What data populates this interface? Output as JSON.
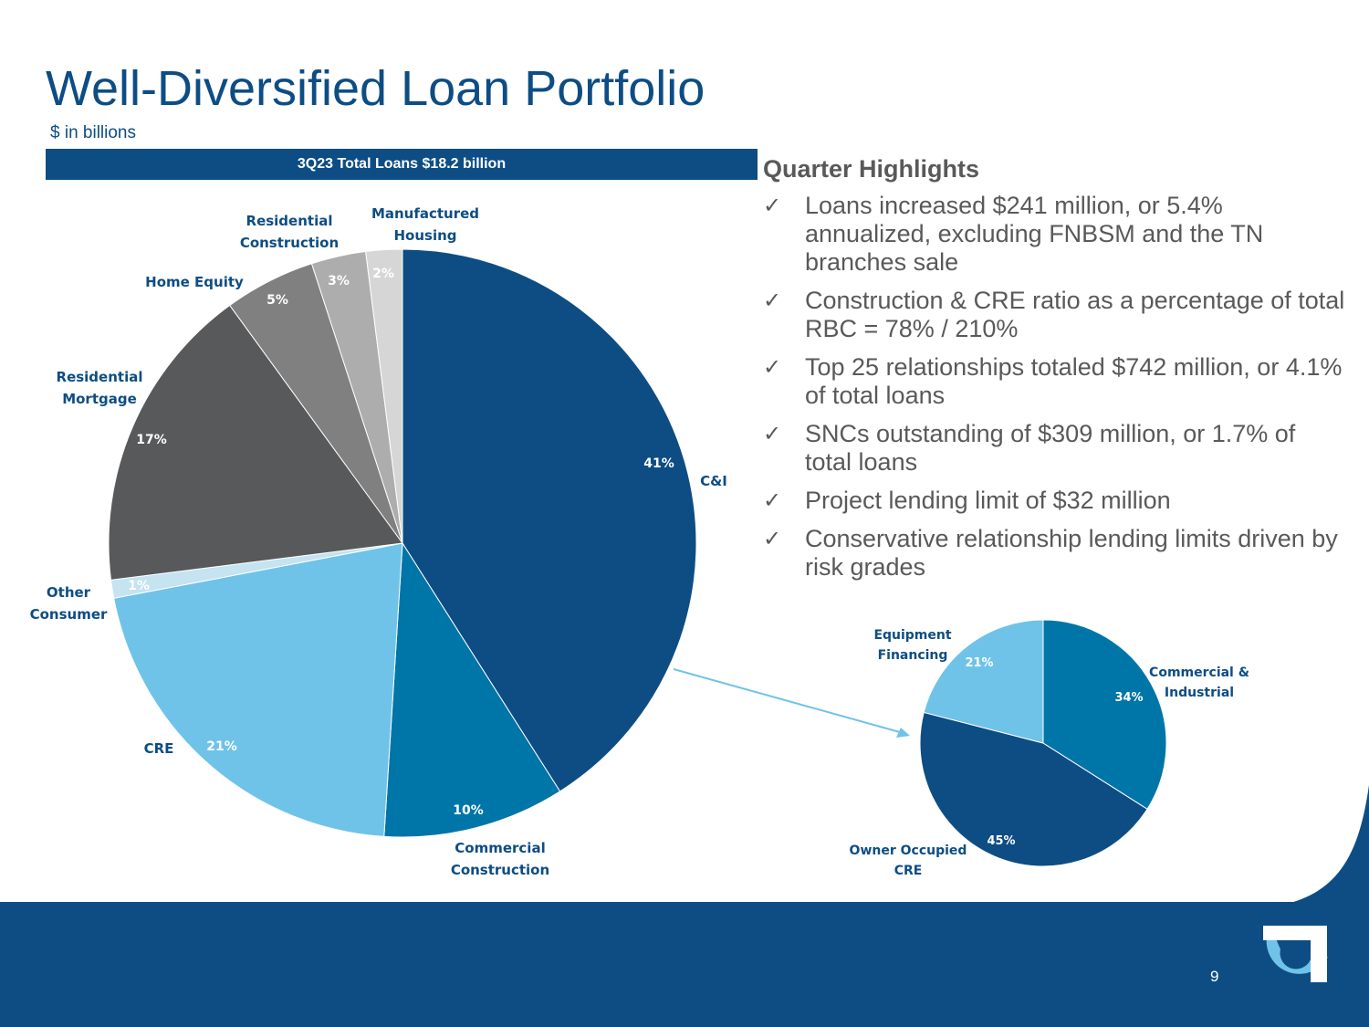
{
  "slide": {
    "title": "Well-Diversified Loan Portfolio",
    "subtitle": "$ in billions",
    "banner": "3Q23 Total Loans $18.2 billion",
    "page_number": "9",
    "colors": {
      "brand_navy": "#0d4d84",
      "brand_light_blue": "#6fc3e8",
      "text_gray": "#595959"
    }
  },
  "highlights": {
    "title": "Quarter Highlights",
    "check_icon": "✓",
    "items": [
      "Loans increased $241 million, or 5.4% annualized, excluding FNBSM and the TN branches sale",
      "Construction & CRE ratio as a percentage of total RBC = 78% / 210%",
      "Top 25 relationships totaled $742 million, or 4.1% of total loans",
      "SNCs outstanding of $309 million, or 1.7% of total loans",
      "Project lending limit of $32 million",
      "Conservative relationship lending limits driven by risk grades"
    ]
  },
  "chart_data": [
    {
      "type": "pie",
      "title": "3Q23 Total Loans $18.2 billion",
      "slices": [
        {
          "label": "C&I",
          "value": 41,
          "display": "41%",
          "color": "#0d4d84"
        },
        {
          "label": "Commercial Construction",
          "value": 10,
          "display": "10%",
          "color": "#0075a8"
        },
        {
          "label": "CRE",
          "value": 21,
          "display": "21%",
          "color": "#6fc3e8"
        },
        {
          "label": "Other Consumer",
          "value": 1,
          "display": "1%",
          "color": "#c5e3f1"
        },
        {
          "label": "Residential Mortgage",
          "value": 17,
          "display": "17%",
          "color": "#58595b"
        },
        {
          "label": "Home Equity",
          "value": 5,
          "display": "5%",
          "color": "#808080"
        },
        {
          "label": "Residential Construction",
          "value": 3,
          "display": "3%",
          "color": "#adadad"
        },
        {
          "label": "Manufactured Housing",
          "value": 2,
          "display": "2%",
          "color": "#d6d6d6"
        }
      ]
    },
    {
      "type": "pie",
      "title": "",
      "slices": [
        {
          "label": "Commercial & Industrial",
          "value": 34,
          "display": "34%",
          "color": "#0075a8"
        },
        {
          "label": "Owner Occupied CRE",
          "value": 45,
          "display": "45%",
          "color": "#0d4d84"
        },
        {
          "label": "Equipment Financing",
          "value": 21,
          "display": "21%",
          "color": "#6fc3e8"
        }
      ]
    }
  ]
}
